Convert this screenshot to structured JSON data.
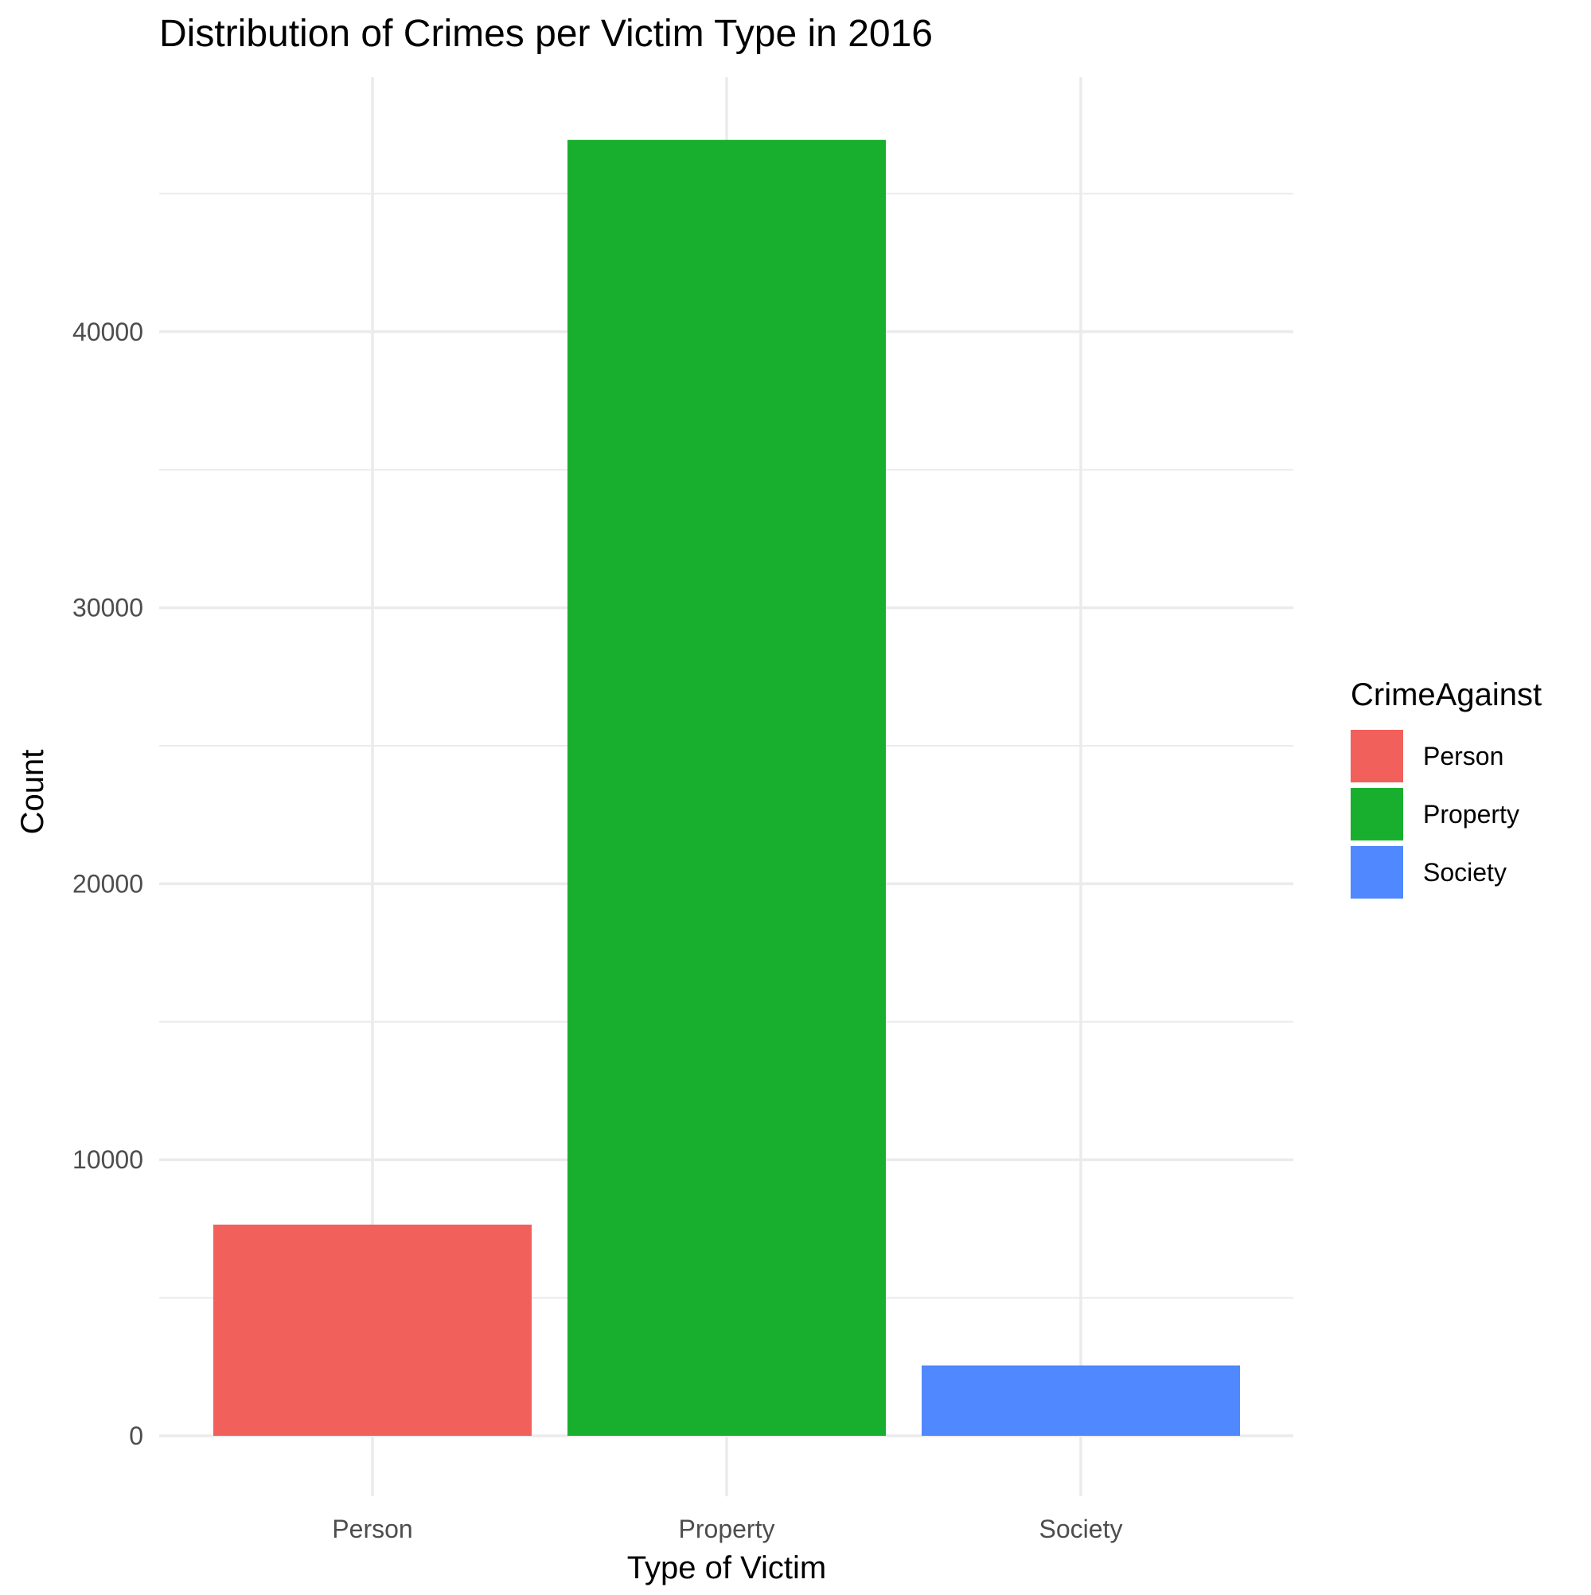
{
  "chart_data": {
    "type": "bar",
    "title": "Distribution of Crimes per Victim Type in 2016",
    "xlabel": "Type of Victim",
    "ylabel": "Count",
    "categories": [
      "Person",
      "Property",
      "Society"
    ],
    "values": [
      7650,
      46950,
      2550
    ],
    "colors": [
      "#F8766D",
      "#00BA38",
      "#619CFF"
    ],
    "bar_colors_rendered": [
      "#F2605B",
      "#19AF2E",
      "#4F88FF"
    ],
    "ylim": [
      -2300,
      49000
    ],
    "y_ticks": [
      0,
      10000,
      20000,
      30000,
      40000
    ],
    "y_minor_ticks": [
      5000,
      15000,
      25000,
      35000,
      45000
    ],
    "grid": true,
    "legend": {
      "title": "CrimeAgainst",
      "placement": "right",
      "entries": [
        "Person",
        "Property",
        "Society"
      ]
    }
  }
}
